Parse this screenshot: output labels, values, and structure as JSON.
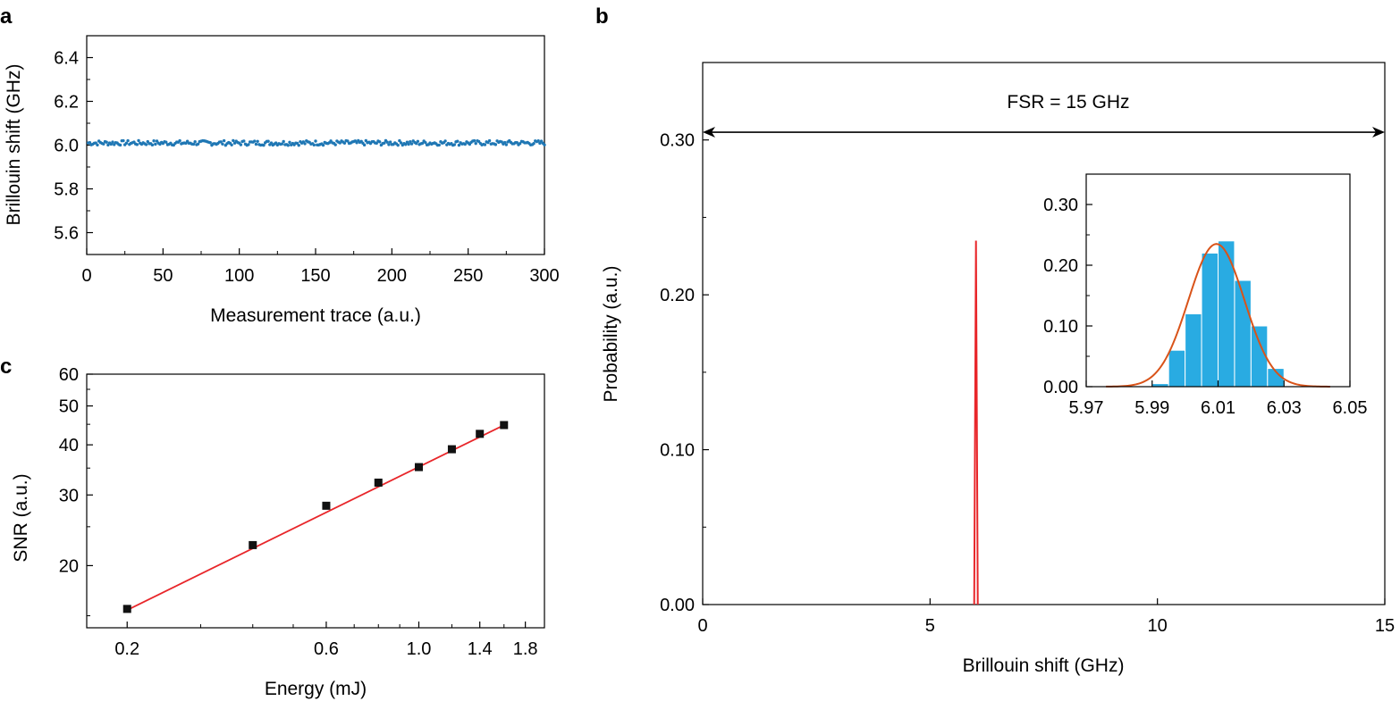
{
  "chart_data": [
    {
      "panel": "a",
      "type": "scatter",
      "xlabel": "Measurement trace (a.u.)",
      "ylabel": "Brillouin shift (GHz)",
      "xlim": [
        0,
        300
      ],
      "ylim": [
        5.5,
        6.5
      ],
      "xticks": [
        0,
        50,
        100,
        150,
        200,
        250,
        300
      ],
      "xtick_labels": [
        "0",
        "50",
        "100",
        "150",
        "200",
        "250",
        "300"
      ],
      "yticks": [
        5.6,
        5.8,
        6.0,
        6.2,
        6.4
      ],
      "ytick_labels": [
        "5.6",
        "5.8",
        "6.0",
        "6.2",
        "6.4"
      ],
      "marker_color": "#1f77b4",
      "series": [
        {
          "mean": 6.01,
          "spread": 0.01,
          "values_sample": [
            6.01,
            6.0,
            6.02,
            6.01,
            6.0,
            6.02,
            6.01,
            6.0,
            6.01,
            6.02,
            6.0,
            6.01,
            6.02,
            6.01,
            6.0
          ]
        }
      ]
    },
    {
      "panel": "b",
      "type": "line",
      "xlabel": "Brillouin shift (GHz)",
      "ylabel": "Probability (a.u.)",
      "xlim": [
        0,
        15
      ],
      "ylim": [
        0,
        0.35
      ],
      "xticks": [
        0,
        5,
        10,
        15
      ],
      "xtick_labels": [
        "0",
        "5",
        "10",
        "15"
      ],
      "yticks": [
        0.0,
        0.1,
        0.2,
        0.3
      ],
      "ytick_labels": [
        "0.00",
        "0.10",
        "0.20",
        "0.30"
      ],
      "line_color": "#e8262a",
      "peak": {
        "x": 6.01,
        "y": 0.235
      },
      "annotation": {
        "text": "FSR = 15 GHz",
        "from": 0,
        "to": 15,
        "y": 0.305
      }
    },
    {
      "panel": "b-inset",
      "type": "bar",
      "xlim": [
        5.97,
        6.05
      ],
      "ylim": [
        0,
        0.35
      ],
      "xticks": [
        5.97,
        5.99,
        6.01,
        6.03,
        6.05
      ],
      "xtick_labels": [
        "5.97",
        "5.99",
        "6.01",
        "6.03",
        "6.05"
      ],
      "yticks": [
        0.0,
        0.1,
        0.2,
        0.3
      ],
      "ytick_labels": [
        "0.00",
        "0.10",
        "0.20",
        "0.30"
      ],
      "bar_color": "#29abe2",
      "fit_color": "#d95319",
      "bin_width": 0.005,
      "bin_centers": [
        5.9925,
        5.9975,
        6.0025,
        6.0075,
        6.0125,
        6.0175,
        6.0225,
        6.0275
      ],
      "values": [
        0.005,
        0.06,
        0.12,
        0.22,
        0.24,
        0.175,
        0.1,
        0.03
      ],
      "fit": {
        "mean": 6.0095,
        "sigma": 0.0085,
        "amplitude": 0.235
      }
    },
    {
      "panel": "c",
      "type": "scatter",
      "xlabel": "Energy (mJ)",
      "ylabel": "SNR (a.u.)",
      "xscale": "log",
      "yscale": "log",
      "xlim": [
        0.16,
        2.0
      ],
      "ylim": [
        14,
        60
      ],
      "xticks": [
        0.2,
        0.6,
        1.0,
        1.4,
        1.8
      ],
      "xtick_labels": [
        "0.2",
        "0.6",
        "1.0",
        "1.4",
        "1.8"
      ],
      "yticks": [
        20,
        30,
        40,
        50,
        60
      ],
      "ytick_labels": [
        "20",
        "30",
        "40",
        "50",
        "60"
      ],
      "marker_color": "#111111",
      "line_color": "#e8262a",
      "x": [
        0.2,
        0.4,
        0.6,
        0.8,
        1.0,
        1.2,
        1.4,
        1.6
      ],
      "y": [
        15.6,
        22.5,
        28.2,
        32.2,
        35.2,
        39.0,
        42.6,
        44.8
      ],
      "fit": {
        "x": [
          0.2,
          1.6
        ],
        "y": [
          15.5,
          44.8
        ]
      }
    }
  ],
  "labels": {
    "a": "a",
    "b": "b",
    "c": "c"
  }
}
